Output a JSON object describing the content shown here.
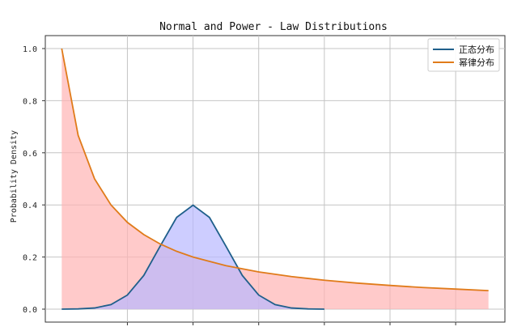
{
  "chart_data": {
    "type": "line",
    "title": "Normal and Power - Law Distributions",
    "xlabel": "",
    "ylabel": "Probability Density",
    "ylim": [
      0,
      1.0
    ],
    "xlim": [
      -4.5,
      9.5
    ],
    "yticks": [
      "0.0",
      "0.2",
      "0.4",
      "0.6",
      "0.8",
      "1.0"
    ],
    "grid": true,
    "legend_position": "top-right",
    "series": [
      {
        "name": "正态分布",
        "color": "#1f5f8b",
        "fill": "#b8b8ff",
        "x": [
          -4.0,
          -3.5,
          -3.0,
          -2.5,
          -2.0,
          -1.5,
          -1.0,
          -0.5,
          0.0,
          0.5,
          1.0,
          1.5,
          2.0,
          2.5,
          3.0,
          3.5,
          4.0
        ],
        "y": [
          0.0001,
          0.0009,
          0.0044,
          0.0175,
          0.054,
          0.1295,
          0.242,
          0.3521,
          0.3989,
          0.3521,
          0.242,
          0.1295,
          0.054,
          0.0175,
          0.0044,
          0.0009,
          0.0001
        ]
      },
      {
        "name": "幂律分布",
        "color": "#e07b1a",
        "fill": "#ffb3b3",
        "x": [
          -4.0,
          -3.5,
          -3.0,
          -2.5,
          -2.0,
          -1.5,
          -1.0,
          -0.5,
          0.0,
          1.0,
          2.0,
          3.0,
          4.0,
          5.0,
          6.0,
          7.0,
          8.0,
          9.0
        ],
        "y": [
          1.0,
          0.667,
          0.5,
          0.4,
          0.333,
          0.286,
          0.25,
          0.222,
          0.2,
          0.167,
          0.143,
          0.125,
          0.111,
          0.1,
          0.091,
          0.083,
          0.077,
          0.071
        ]
      }
    ]
  }
}
